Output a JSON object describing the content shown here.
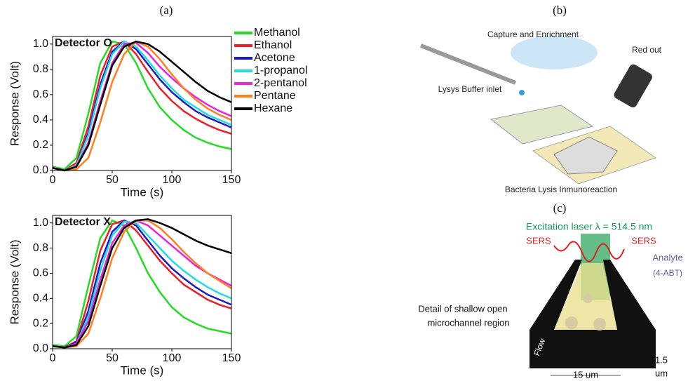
{
  "panels": [
    "(a)",
    "(b)",
    "(c)"
  ],
  "chart_data": [
    {
      "type": "line",
      "title": "Detector O",
      "xlabel": "Time (s)",
      "ylabel": "Response (Volt)",
      "x": [
        0,
        10,
        20,
        30,
        40,
        50,
        60,
        70,
        80,
        90,
        100,
        110,
        120,
        130,
        140,
        150
      ],
      "xlim": [
        0,
        150
      ],
      "xticks": [
        0,
        50,
        100,
        150
      ],
      "ylim": [
        0,
        1.06
      ],
      "yticks": [
        {
          "value": 0,
          "label": "0.0"
        },
        0.2,
        0.4,
        0.6,
        0.8,
        {
          "value": 1,
          "label": "1.0"
        }
      ],
      "series": [
        {
          "name": "Methanol",
          "color": "#22dd22",
          "values": [
            0.03,
            0.01,
            0.1,
            0.45,
            0.85,
            1.02,
            1.0,
            0.85,
            0.65,
            0.5,
            0.4,
            0.32,
            0.26,
            0.22,
            0.19,
            0.17
          ]
        },
        {
          "name": "Ethanol",
          "color": "#ee1c24",
          "values": [
            0.02,
            0,
            0.06,
            0.35,
            0.75,
            0.98,
            1.02,
            0.92,
            0.78,
            0.65,
            0.55,
            0.47,
            0.41,
            0.36,
            0.32,
            0.29
          ]
        },
        {
          "name": "Acetone",
          "color": "#1a1acc",
          "values": [
            0.02,
            0,
            0.04,
            0.3,
            0.68,
            0.94,
            1.02,
            0.96,
            0.84,
            0.72,
            0.62,
            0.54,
            0.47,
            0.42,
            0.38,
            0.34
          ]
        },
        {
          "name": "1-propanol",
          "color": "#22dddd",
          "values": [
            0.02,
            0,
            0.04,
            0.28,
            0.65,
            0.92,
            1.02,
            0.98,
            0.87,
            0.75,
            0.65,
            0.56,
            0.5,
            0.44,
            0.4,
            0.36
          ]
        },
        {
          "name": "2-pentanol",
          "color": "#ee22dd",
          "values": [
            0.02,
            0,
            0.03,
            0.22,
            0.55,
            0.85,
            1.0,
            1.01,
            0.93,
            0.82,
            0.73,
            0.65,
            0.58,
            0.52,
            0.47,
            0.43
          ]
        },
        {
          "name": "Pentane",
          "color": "#ff7f1e",
          "values": [
            0.02,
            0,
            0.01,
            0.1,
            0.38,
            0.7,
            0.92,
            1.02,
            0.98,
            0.88,
            0.76,
            0.65,
            0.56,
            0.49,
            0.44,
            0.4
          ]
        },
        {
          "name": "Hexane",
          "color": "#000000",
          "values": [
            0.02,
            0,
            0.03,
            0.2,
            0.52,
            0.83,
            0.98,
            1.02,
            1.0,
            0.94,
            0.86,
            0.78,
            0.7,
            0.63,
            0.58,
            0.54
          ]
        }
      ]
    },
    {
      "type": "line",
      "title": "Detector X",
      "xlabel": "Time (s)",
      "ylabel": "Response (Volt)",
      "x": [
        0,
        10,
        20,
        30,
        40,
        50,
        60,
        70,
        80,
        90,
        100,
        110,
        120,
        130,
        140,
        150
      ],
      "xlim": [
        0,
        150
      ],
      "xticks": [
        0,
        50,
        100,
        150
      ],
      "ylim": [
        0,
        1.06
      ],
      "yticks": [
        {
          "value": 0,
          "label": "0.0"
        },
        0.2,
        0.4,
        0.6,
        0.8,
        {
          "value": 1,
          "label": "1.0"
        }
      ],
      "series": [
        {
          "color": "#22dd22",
          "values": [
            0.03,
            0.02,
            0.1,
            0.5,
            0.88,
            1.02,
            0.98,
            0.8,
            0.6,
            0.45,
            0.33,
            0.25,
            0.2,
            0.16,
            0.14,
            0.12
          ]
        },
        {
          "color": "#ee1c24",
          "values": [
            0.02,
            0.01,
            0.06,
            0.38,
            0.78,
            0.99,
            1.02,
            0.94,
            0.82,
            0.7,
            0.6,
            0.51,
            0.45,
            0.39,
            0.35,
            0.32
          ]
        },
        {
          "color": "#1a1acc",
          "values": [
            0.02,
            0.01,
            0.05,
            0.3,
            0.68,
            0.93,
            1.02,
            0.98,
            0.86,
            0.74,
            0.64,
            0.56,
            0.49,
            0.43,
            0.39,
            0.35
          ]
        },
        {
          "color": "#22dddd",
          "values": [
            0.02,
            0.01,
            0.04,
            0.26,
            0.62,
            0.9,
            1.01,
            1.0,
            0.9,
            0.8,
            0.7,
            0.62,
            0.55,
            0.49,
            0.44,
            0.4
          ]
        },
        {
          "color": "#ee22dd",
          "values": [
            0.02,
            0.01,
            0.04,
            0.22,
            0.55,
            0.84,
            0.98,
            1.02,
            0.98,
            0.9,
            0.82,
            0.74,
            0.66,
            0.6,
            0.55,
            0.5
          ]
        },
        {
          "color": "#ff7f1e",
          "values": [
            0.02,
            0.01,
            0.02,
            0.12,
            0.4,
            0.72,
            0.93,
            1.02,
            1.02,
            0.96,
            0.87,
            0.77,
            0.68,
            0.6,
            0.54,
            0.48
          ]
        },
        {
          "color": "#000000",
          "values": [
            0.02,
            0.01,
            0.03,
            0.18,
            0.5,
            0.8,
            0.96,
            1.02,
            1.03,
            1.0,
            0.96,
            0.91,
            0.86,
            0.82,
            0.79,
            0.76
          ]
        }
      ]
    }
  ],
  "diagram_b": {
    "capture": "Capture and Enrichment",
    "readout": "Red out",
    "inlet": "Lysys Buffer inlet",
    "lysis": "Bacteria Lysis Inmunoreaction"
  },
  "diagram_c": {
    "laser": "Excitation laser λ = 514.5 nm",
    "sers_left": "SERS",
    "sers_right": "SERS",
    "analyte": "Analyte",
    "analyte_name": "(4-ABT)",
    "detail_1": "Detail of shallow open",
    "detail_2": "microchannel region",
    "flow": "Flow",
    "depth": "1.5",
    "depth_unit": "um",
    "width": "15 um"
  }
}
